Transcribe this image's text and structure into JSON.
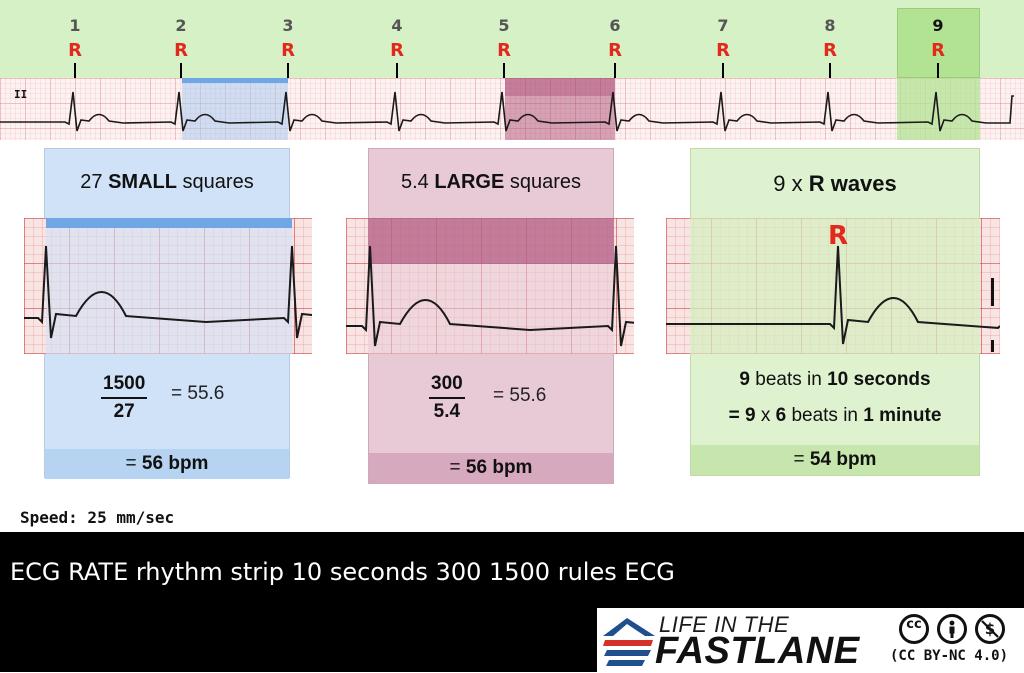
{
  "strip": {
    "lead": "II",
    "r_label": "R",
    "beats": [
      "1",
      "2",
      "3",
      "4",
      "5",
      "6",
      "7",
      "8",
      "9"
    ]
  },
  "panel_small": {
    "title_count": "27",
    "title_bold": "SMALL",
    "title_rest": "squares",
    "numerator": "1500",
    "denominator": "27",
    "equals": "= 55.6",
    "result_prefix": "=",
    "result_bold": "56 bpm"
  },
  "panel_large": {
    "title_count": "5.4",
    "title_bold": "LARGE",
    "title_rest": "squares",
    "numerator": "300",
    "denominator": "5.4",
    "equals": "= 55.6",
    "result_prefix": "=",
    "result_bold": "56 bpm"
  },
  "panel_rwaves": {
    "title_prefix": "9 x",
    "title_bold": "R waves",
    "r_label": "R",
    "line1_a": "9",
    "line1_b": "beats in",
    "line1_c": "10 seconds",
    "line2_a": "= 9",
    "line2_b": "x",
    "line2_c": "6",
    "line2_d": "beats in",
    "line2_e": "1 minute",
    "result_prefix": "=",
    "result_bold": "54 bpm"
  },
  "speed": "Speed: 25 mm/sec",
  "caption": "ECG RATE rhythm strip 10 seconds 300 1500 rules ECG",
  "logo": {
    "line1": "LIFE IN THE",
    "line2": "FASTLANE",
    "cc_badge": "cc",
    "license": "(CC BY-NC 4.0)"
  },
  "colors": {
    "header_green": "#d7f1c6",
    "highlight_green": "#b2e393",
    "blue_panel": "#cfe2f7",
    "mauve_panel": "#e8cad7",
    "green_panel": "#dff2d0",
    "r_red": "#e3291b",
    "grid_red": "#e07a7a"
  },
  "icons": [
    "fastlane-logo-icon",
    "cc-icon",
    "attribution-icon",
    "non-commercial-icon"
  ]
}
